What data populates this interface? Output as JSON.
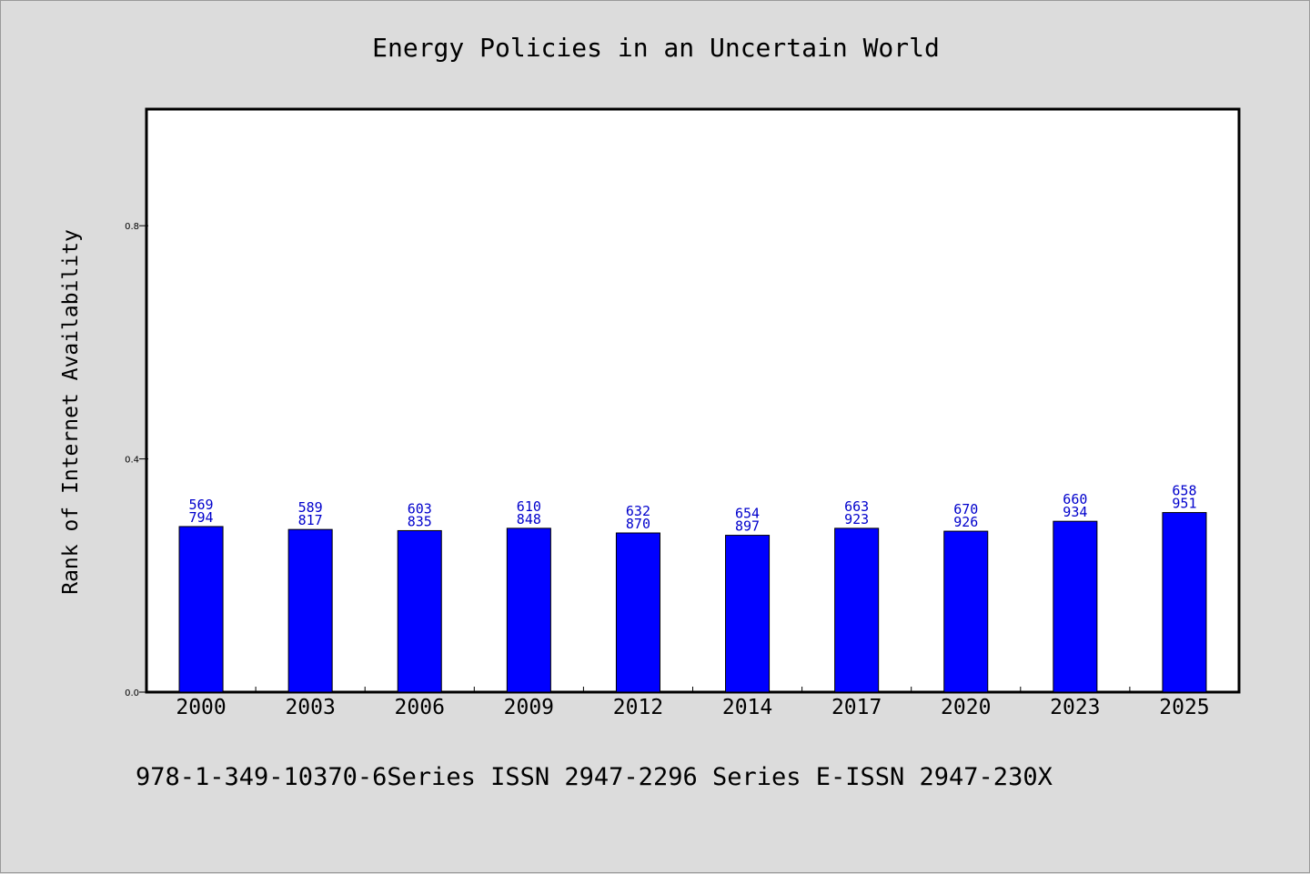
{
  "chart_data": {
    "type": "bar",
    "title": "Energy Policies in an Uncertain World",
    "ylabel": "Rank of Internet Availability",
    "xlabel": "",
    "ylim": [
      0,
      1.0
    ],
    "yticks": [
      0.0,
      0.4,
      0.8
    ],
    "ytick_labels": [
      "0.0",
      "0.4",
      "0.8"
    ],
    "grid": false,
    "legend": "none",
    "categories": [
      "2000",
      "2003",
      "2006",
      "2009",
      "2012",
      "2014",
      "2017",
      "2020",
      "2023",
      "2025"
    ],
    "values": [
      0.284,
      0.279,
      0.277,
      0.281,
      0.273,
      0.269,
      0.281,
      0.276,
      0.293,
      0.308
    ],
    "labels_top": [
      "569",
      "589",
      "603",
      "610",
      "632",
      "654",
      "663",
      "670",
      "660",
      "658"
    ],
    "labels_bottom": [
      "794",
      "817",
      "835",
      "848",
      "870",
      "897",
      "923",
      "926",
      "934",
      "951"
    ],
    "colors": {
      "bar": "#0000ff",
      "label": "#0000cc",
      "plot_bg": "#ffffff",
      "page_bg": "#dcdcdc"
    }
  },
  "footer": {
    "text": "978-1-349-10370-6Series ISSN 2947-2296 Series E-ISSN 2947-230X"
  }
}
